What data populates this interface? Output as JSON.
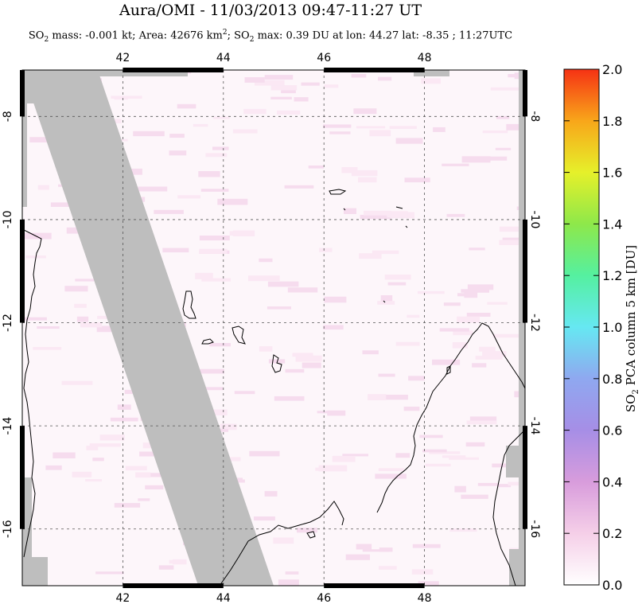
{
  "title": "Aura/OMI - 11/03/2013 09:47-11:27 UT",
  "subtitle": {
    "part1": "SO",
    "part1_sub": "2",
    "part2": " mass: -0.001 kt; Area: 42676 km",
    "part2_sup": "2",
    "part3": "; SO",
    "part3_sub": "2",
    "part4": " max: 0.39 DU at lon: 44.27 lat: -8.35 ; 11:27UTC"
  },
  "chart_data": {
    "type": "heatmap",
    "title": "Aura/OMI - 11/03/2013 09:47-11:27 UT",
    "x_ticks": [
      "42",
      "44",
      "46",
      "48"
    ],
    "y_ticks": [
      "-8",
      "-10",
      "-12",
      "-14",
      "-16"
    ],
    "xlim": [
      40,
      50
    ],
    "ylim": [
      -17.1,
      -7.1
    ],
    "grid": true,
    "colorbar": {
      "label_prefix": "SO",
      "label_sub": "2",
      "label_suffix": " PCA column 5 km [DU]",
      "ticks": [
        "0.0",
        "0.2",
        "0.4",
        "0.6",
        "0.8",
        "1.0",
        "1.2",
        "1.4",
        "1.6",
        "1.8",
        "2.0"
      ],
      "range": [
        0,
        2
      ],
      "colors": [
        "#ffffff",
        "#f5cfe8",
        "#d89cdc",
        "#a68ee6",
        "#8fa8f0",
        "#66e8f2",
        "#55f0a0",
        "#8ee84a",
        "#e6f02a",
        "#f8a61a",
        "#f63214"
      ]
    },
    "no_data_swath": [
      [
        40.0,
        -7.1
      ],
      [
        41.5,
        -7.1
      ],
      [
        45.0,
        -17.1
      ],
      [
        43.5,
        -17.1
      ]
    ],
    "no_data_color": "#bebebe",
    "background_color": "#fdf6fa"
  }
}
